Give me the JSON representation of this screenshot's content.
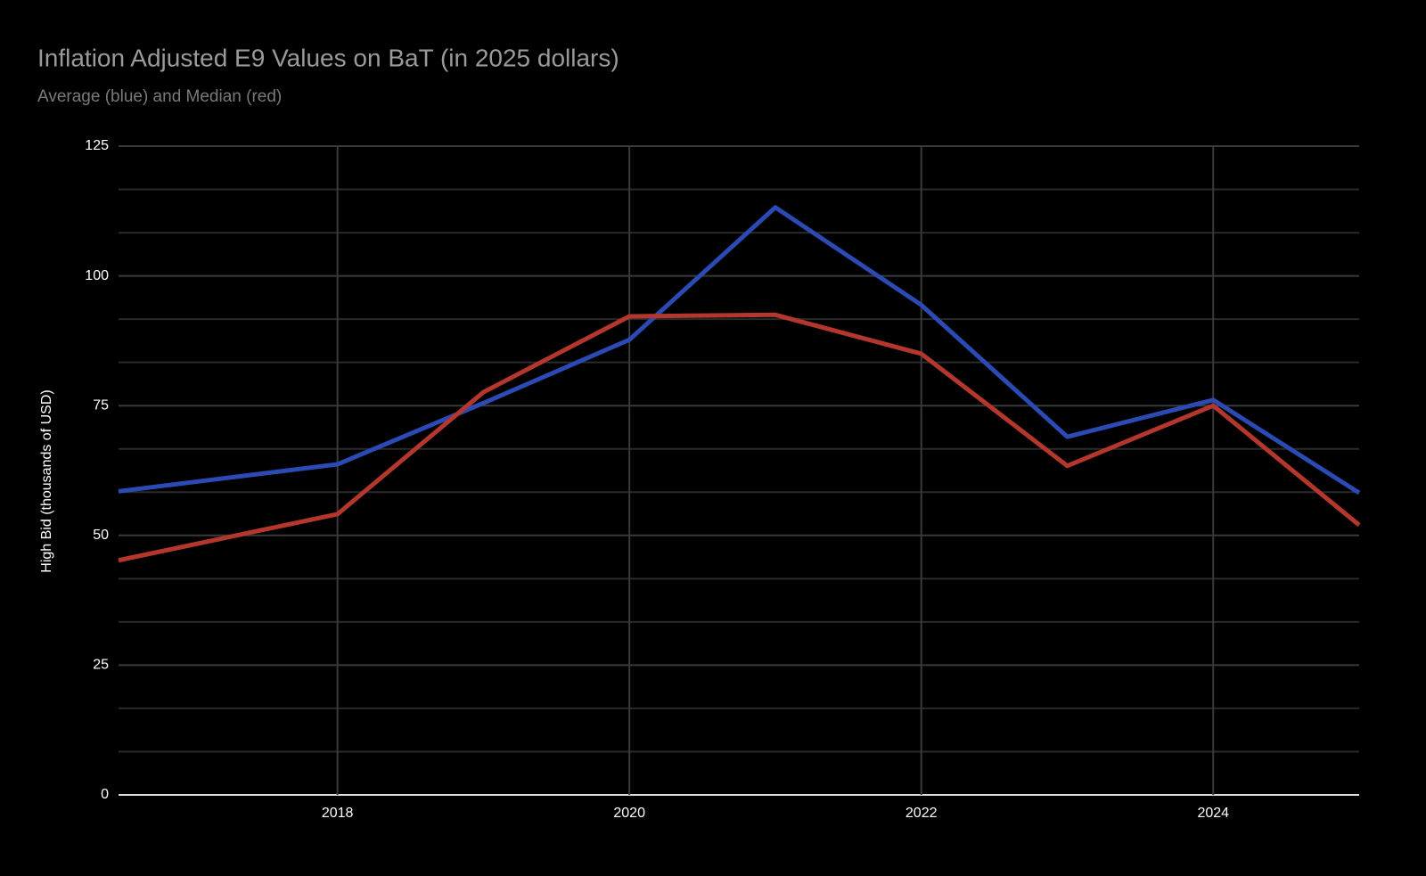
{
  "chart_data": {
    "type": "line",
    "title": "Inflation Adjusted E9 Values on BaT (in 2025 dollars)",
    "subtitle": "Average (blue) and Median (red)",
    "y_label": "High Bid (thousands of USD)",
    "x": [
      2016.5,
      2018,
      2019,
      2020,
      2021,
      2022,
      2023,
      2024,
      2025
    ],
    "series": [
      {
        "name": "Average",
        "color": "#2b4ab3",
        "values": [
          58.5,
          63.7,
          75.5,
          87.7,
          113.2,
          94.4,
          69.0,
          76.1,
          58.2
        ]
      },
      {
        "name": "Median",
        "color": "#b3372c",
        "values": [
          45.2,
          54.1,
          77.6,
          92.2,
          92.5,
          85.0,
          63.4,
          75.0,
          52.0
        ]
      }
    ],
    "xlim": [
      2016.5,
      2025
    ],
    "xticks": [
      2018,
      2020,
      2022,
      2024
    ],
    "ylim": [
      0,
      125
    ],
    "yticks": [
      0,
      25,
      50,
      75,
      100,
      125
    ],
    "grid": true
  }
}
